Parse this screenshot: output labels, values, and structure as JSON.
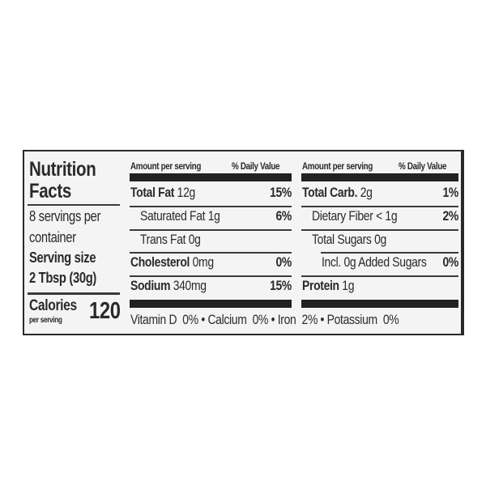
{
  "title_line1": "Nutrition",
  "title_line2": "Facts",
  "servings_line1": "8 servings per",
  "servings_line2": "container",
  "serving_size_label": "Serving size",
  "serving_size_value": "2 Tbsp (30g)",
  "calories_label": "Calories",
  "calories_sub": "per serving",
  "calories_value": "120",
  "left_table": {
    "header_amount": "Amount per serving",
    "header_dv": "% Daily Value",
    "rows": [
      {
        "name": "Total Fat",
        "amount": "12g",
        "dv": "15%"
      },
      {
        "name": "Saturated Fat",
        "amount": "1g",
        "dv": "6%"
      },
      {
        "name": "Trans Fat",
        "amount": "0g",
        "dv": ""
      },
      {
        "name": "Cholesterol",
        "amount": "0mg",
        "dv": "0%"
      },
      {
        "name": "Sodium",
        "amount": "340mg",
        "dv": "15%"
      }
    ]
  },
  "right_table": {
    "header_amount": "Amount per serving",
    "header_dv": "% Daily Value",
    "rows": [
      {
        "name": "Total Carb.",
        "amount": "2g",
        "dv": "1%"
      },
      {
        "name": "Dietary Fiber",
        "amount": "< 1g",
        "dv": "2%"
      },
      {
        "name": "Total Sugars",
        "amount": "0g",
        "dv": ""
      },
      {
        "name": "Incl. 0g Added Sugars",
        "amount": "",
        "dv": "0%"
      },
      {
        "name": "Protein",
        "amount": "1g",
        "dv": ""
      }
    ]
  },
  "vitamins": "Vitamin D  0% • Calcium  0% • Iron  2% • Potassium  0%"
}
